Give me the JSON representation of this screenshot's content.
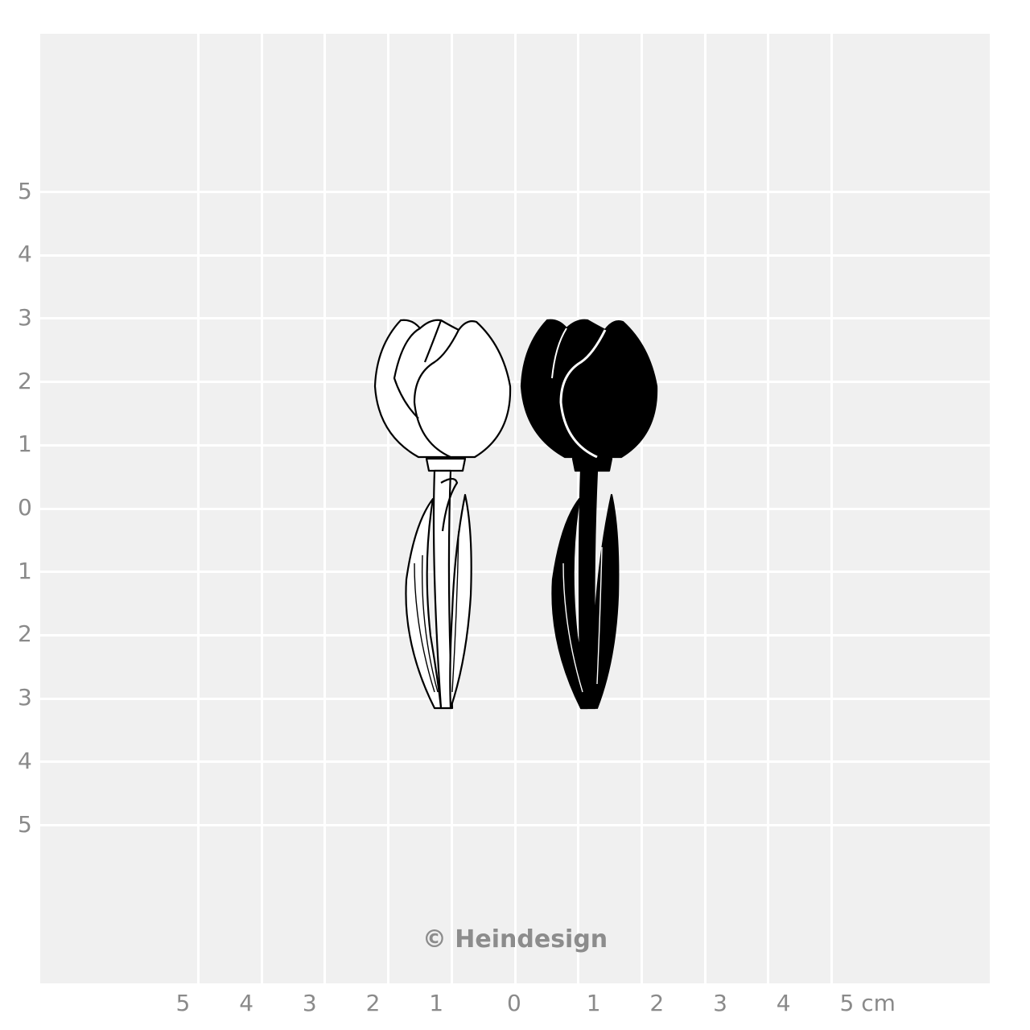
{
  "ruler": {
    "y_labels": [
      "5",
      "4",
      "3",
      "2",
      "1",
      "0",
      "1",
      "2",
      "3",
      "4",
      "5"
    ],
    "x_labels": [
      "5",
      "4",
      "3",
      "2",
      "1",
      "0",
      "1",
      "2",
      "3",
      "4",
      "5 cm"
    ],
    "unit": "cm"
  },
  "images": [
    {
      "name": "tulip-outline",
      "fill": "#ffffff",
      "stroke": "#000000"
    },
    {
      "name": "tulip-solid",
      "fill": "#000000",
      "stroke": "#000000"
    }
  ],
  "watermark": "© Heindesign"
}
